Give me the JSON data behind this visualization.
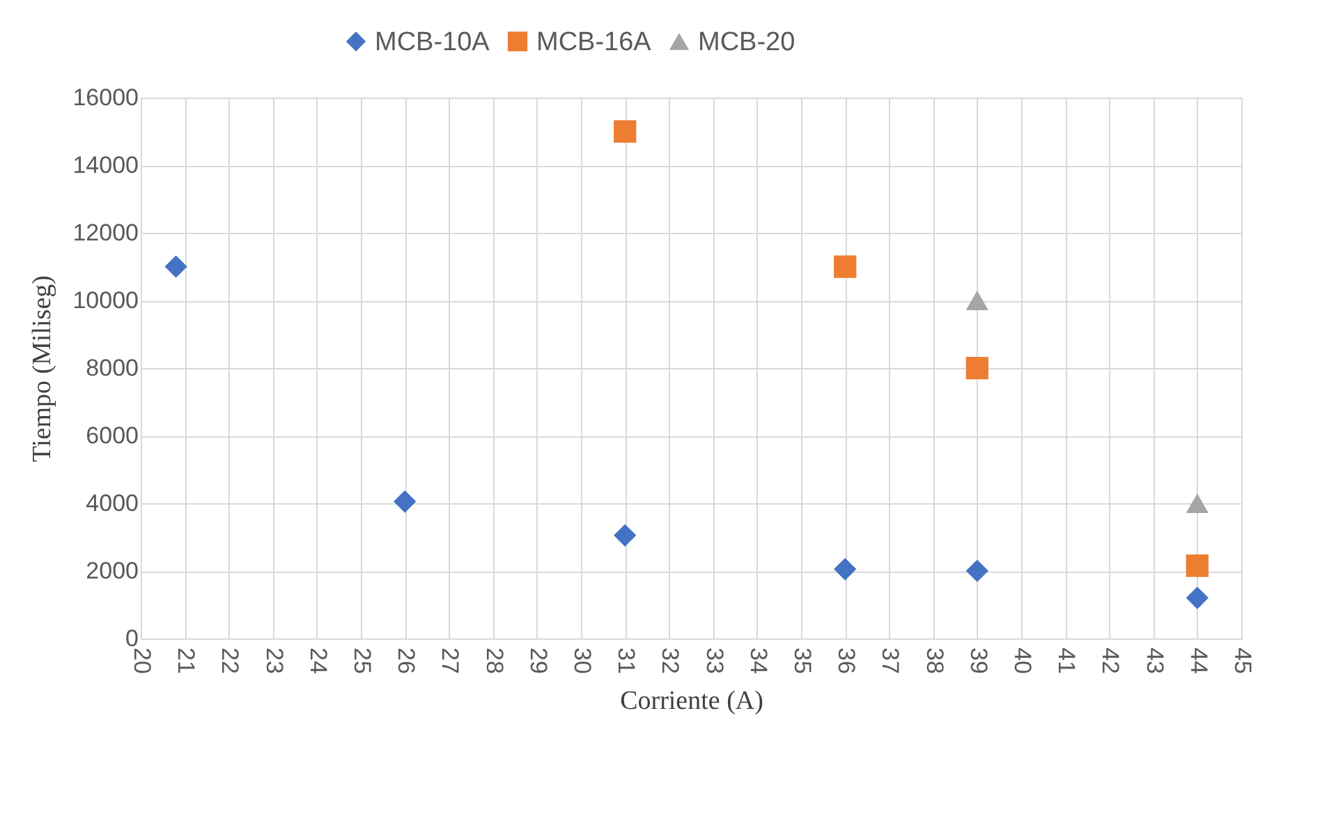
{
  "chart_data": {
    "type": "scatter",
    "xlabel": "Corriente (A)",
    "ylabel": "Tiempo  (Miliseg)",
    "xlim": [
      20,
      45
    ],
    "xticks": [
      20,
      21,
      22,
      23,
      24,
      25,
      26,
      27,
      28,
      29,
      30,
      31,
      32,
      33,
      34,
      35,
      36,
      37,
      38,
      39,
      40,
      41,
      42,
      43,
      44,
      45
    ],
    "ylim": [
      0,
      16000
    ],
    "yticks": [
      0,
      2000,
      4000,
      6000,
      8000,
      10000,
      12000,
      14000,
      16000
    ],
    "grid": true,
    "legend": "top",
    "series": [
      {
        "name": "MCB-10A",
        "color": "#4472c4",
        "marker": "diamond",
        "x": [
          20.8,
          26,
          31,
          36,
          39,
          44
        ],
        "values": [
          11000,
          4050,
          3050,
          2050,
          2000,
          1200
        ]
      },
      {
        "name": "MCB-16A",
        "color": "#ed7d31",
        "marker": "square",
        "x": [
          31,
          36,
          39,
          44
        ],
        "values": [
          15000,
          11000,
          8000,
          2150
        ]
      },
      {
        "name": "MCB-20",
        "color": "#a5a5a5",
        "marker": "triangle",
        "x": [
          39,
          44
        ],
        "values": [
          10000,
          4000
        ]
      }
    ]
  }
}
